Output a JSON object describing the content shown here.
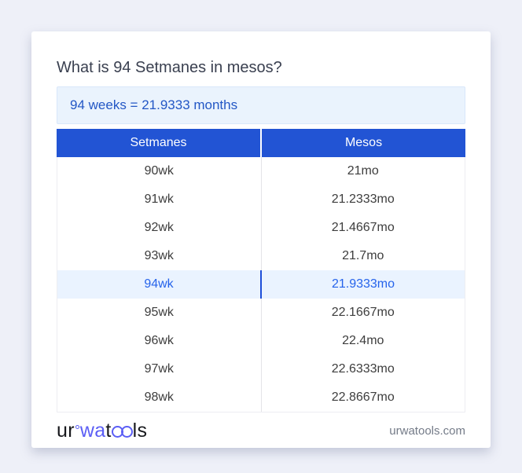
{
  "header": {
    "title": "What is 94 Setmanes in mesos?",
    "result": "94 weeks = 21.9333 months"
  },
  "table": {
    "headers": [
      "Setmanes",
      "Mesos"
    ],
    "rows": [
      {
        "weeks": "90wk",
        "months": "21mo",
        "highlight": false
      },
      {
        "weeks": "91wk",
        "months": "21.2333mo",
        "highlight": false
      },
      {
        "weeks": "92wk",
        "months": "21.4667mo",
        "highlight": false
      },
      {
        "weeks": "93wk",
        "months": "21.7mo",
        "highlight": false
      },
      {
        "weeks": "94wk",
        "months": "21.9333mo",
        "highlight": true
      },
      {
        "weeks": "95wk",
        "months": "22.1667mo",
        "highlight": false
      },
      {
        "weeks": "96wk",
        "months": "22.4mo",
        "highlight": false
      },
      {
        "weeks": "97wk",
        "months": "22.6333mo",
        "highlight": false
      },
      {
        "weeks": "98wk",
        "months": "22.8667mo",
        "highlight": false
      }
    ]
  },
  "footer": {
    "logo": {
      "part1": "ur",
      "part2": "wa",
      "part3": "t",
      "part4": "ls"
    },
    "site": "urwatools.com"
  },
  "colors": {
    "page_background": "#eef0f8",
    "card_background": "#ffffff",
    "table_header_blue": "#2254d4",
    "result_box_background": "#eaf3fd",
    "result_box_border": "#d9e7fa",
    "result_text_blue": "#2357c5",
    "highlight_row_background": "#eaf3ff",
    "highlight_text_blue": "#2563eb",
    "highlight_divider_blue": "#1d4ed8",
    "logo_blue": "#5b5ef5",
    "title_text": "#3a4050",
    "cell_text": "#3d3d3d",
    "muted_text": "#747b88"
  }
}
